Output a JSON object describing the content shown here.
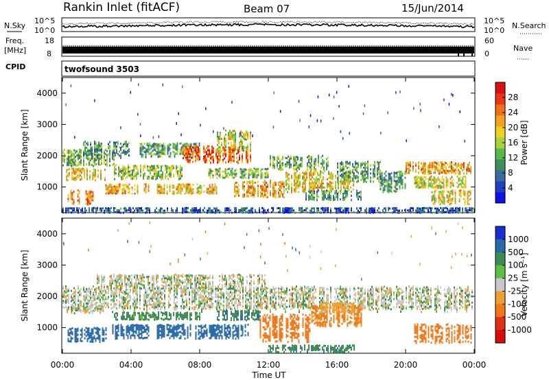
{
  "header": {
    "station": "Rankin Inlet (fitACF)",
    "beam": "Beam 07",
    "date": "15/Jun/2014"
  },
  "panel_labels": {
    "nsky": "N.Sky",
    "nsearch": "N.Search",
    "freq_line1": "Freq.",
    "freq_line2": "[MHz]",
    "nave": "Nave",
    "cpid": "CPID",
    "cpid_value": "twofsound 3503"
  },
  "small_axes": {
    "noise_left": [
      "10^5",
      "10^0"
    ],
    "noise_right": [
      "10^5",
      "10^0"
    ],
    "freq_left": [
      "18",
      "8"
    ],
    "nave_right": [
      "60",
      "0"
    ]
  },
  "chart_data": [
    {
      "type": "heatmap",
      "name_key": "power",
      "ylabel": "Slant Range [km]",
      "xlabel": "Time UT",
      "x_ticks": [
        "00:00",
        "04:00",
        "08:00",
        "12:00",
        "16:00",
        "20:00",
        "00:00"
      ],
      "x_range_hours": [
        0,
        24
      ],
      "y_ticks": [
        1000,
        2000,
        3000,
        4000
      ],
      "ylim": [
        180,
        4500
      ],
      "colorbar": {
        "label": "Power [dB]",
        "ticks": [
          "4",
          "8",
          "12",
          "16",
          "20",
          "24",
          "28"
        ],
        "colors": [
          "#1010e8",
          "#2040c0",
          "#3a6aa0",
          "#3f8f5a",
          "#58b84a",
          "#a8d040",
          "#f0d020",
          "#f5a020",
          "#f07018",
          "#e83818",
          "#d81010"
        ]
      },
      "blobs": [
        {
          "t0": 0.0,
          "t1": 3.0,
          "r0": 1700,
          "r1": 2200,
          "v": 12
        },
        {
          "t0": 0.2,
          "t1": 2.5,
          "r0": 1250,
          "r1": 1600,
          "v": 18
        },
        {
          "t0": 0.3,
          "t1": 1.8,
          "r0": 500,
          "r1": 900,
          "v": 22
        },
        {
          "t0": 1.2,
          "t1": 4.0,
          "r0": 2000,
          "r1": 2450,
          "v": 10
        },
        {
          "t0": 2.5,
          "t1": 5.0,
          "r0": 800,
          "r1": 1100,
          "v": 20
        },
        {
          "t0": 3.0,
          "t1": 7.0,
          "r0": 1300,
          "r1": 1700,
          "v": 14
        },
        {
          "t0": 4.5,
          "t1": 8.0,
          "r0": 2000,
          "r1": 2400,
          "v": 11
        },
        {
          "t0": 5.5,
          "t1": 9.0,
          "r0": 800,
          "r1": 1100,
          "v": 19
        },
        {
          "t0": 7.0,
          "t1": 11.0,
          "r0": 1800,
          "r1": 2300,
          "v": 24
        },
        {
          "t0": 9.0,
          "t1": 11.0,
          "r0": 2200,
          "r1": 2800,
          "v": 16
        },
        {
          "t0": 8.5,
          "t1": 12.0,
          "r0": 1300,
          "r1": 1600,
          "v": 13
        },
        {
          "t0": 10.0,
          "t1": 13.0,
          "r0": 700,
          "r1": 1200,
          "v": 20
        },
        {
          "t0": 12.0,
          "t1": 15.5,
          "r0": 1600,
          "r1": 2000,
          "v": 12
        },
        {
          "t0": 13.0,
          "t1": 17.0,
          "r0": 900,
          "r1": 1500,
          "v": 18
        },
        {
          "t0": 14.0,
          "t1": 17.5,
          "r0": 600,
          "r1": 900,
          "v": 10
        },
        {
          "t0": 16.0,
          "t1": 18.5,
          "r0": 1200,
          "r1": 1800,
          "v": 11
        },
        {
          "t0": 18.5,
          "t1": 20.0,
          "r0": 900,
          "r1": 1500,
          "v": 10
        },
        {
          "t0": 20.0,
          "t1": 24.0,
          "r0": 1450,
          "r1": 1800,
          "v": 20
        },
        {
          "t0": 20.5,
          "t1": 23.5,
          "r0": 1000,
          "r1": 1350,
          "v": 16
        },
        {
          "t0": 21.5,
          "t1": 23.8,
          "r0": 500,
          "r1": 900,
          "v": 18
        },
        {
          "t0": 0.0,
          "t1": 24.0,
          "r0": 200,
          "r1": 350,
          "v": 6
        }
      ]
    },
    {
      "type": "heatmap",
      "name_key": "velocity",
      "ylabel": "Slant Range [km]",
      "xlabel": "Time UT",
      "x_ticks": [
        "00:00",
        "04:00",
        "08:00",
        "12:00",
        "16:00",
        "20:00",
        "00:00"
      ],
      "x_range_hours": [
        0,
        24
      ],
      "y_ticks": [
        1000,
        2000,
        3000,
        4000
      ],
      "ylim": [
        180,
        4500
      ],
      "colorbar": {
        "label": "Velocity [m s⁻¹]",
        "ticks": [
          "1000",
          "500",
          "100",
          "25",
          "-25",
          "-100",
          "-500",
          "-1000"
        ],
        "colors": [
          "#1a2fd0",
          "#2a6aa8",
          "#3e8a55",
          "#5cc040",
          "#c8c8c8",
          "#f0a030",
          "#f07818",
          "#e03018",
          "#d80c0c"
        ]
      },
      "blobs": [
        {
          "t0": 0.0,
          "t1": 24.0,
          "r0": 1600,
          "r1": 2300,
          "v": 0
        },
        {
          "t0": 2.0,
          "t1": 12.0,
          "r0": 2300,
          "r1": 2700,
          "v": 0
        },
        {
          "t0": 0.3,
          "t1": 2.5,
          "r0": 600,
          "r1": 1000,
          "v": 300
        },
        {
          "t0": 2.5,
          "t1": 5.0,
          "r0": 700,
          "r1": 1100,
          "v": 200
        },
        {
          "t0": 5.5,
          "t1": 11.0,
          "r0": 700,
          "r1": 1100,
          "v": 400
        },
        {
          "t0": 3.0,
          "t1": 8.0,
          "r0": 1250,
          "r1": 1500,
          "v": 60
        },
        {
          "t0": 9.0,
          "t1": 11.5,
          "r0": 1250,
          "r1": 1550,
          "v": 80
        },
        {
          "t0": 11.5,
          "t1": 14.5,
          "r0": 600,
          "r1": 1400,
          "v": -200
        },
        {
          "t0": 14.5,
          "t1": 17.5,
          "r0": 1100,
          "r1": 1700,
          "v": -120
        },
        {
          "t0": 15.0,
          "t1": 17.0,
          "r0": 1500,
          "r1": 1800,
          "v": -60
        },
        {
          "t0": 12.0,
          "t1": 17.0,
          "r0": 250,
          "r1": 450,
          "v": 70
        },
        {
          "t0": 20.5,
          "t1": 23.8,
          "r0": 550,
          "r1": 1100,
          "v": -200
        },
        {
          "t0": 0.5,
          "t1": 2.5,
          "r0": 1500,
          "r1": 1700,
          "v": 0
        }
      ]
    }
  ]
}
